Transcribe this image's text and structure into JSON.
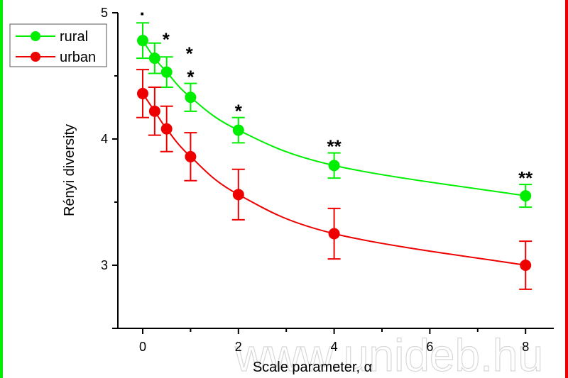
{
  "chart_data": {
    "type": "line",
    "title": "",
    "xlabel": "Scale parameter, α",
    "ylabel": "Rényi diversity",
    "xlim": [
      -0.5,
      8.6
    ],
    "ylim": [
      2.5,
      5
    ],
    "xticks": [
      0,
      2,
      4,
      6,
      8
    ],
    "xtick_labels": [
      "0",
      "2",
      "4",
      "6",
      "8"
    ],
    "yticks": [
      3,
      4,
      5
    ],
    "ytick_labels": [
      "3",
      "4",
      "5"
    ],
    "grid": false,
    "legend_position": "top-left",
    "x": [
      0,
      0.25,
      0.5,
      1,
      2,
      4,
      8
    ],
    "series": [
      {
        "name": "rural",
        "color": "#00ee00",
        "values": [
          4.78,
          4.64,
          4.53,
          4.33,
          4.07,
          3.79,
          3.55
        ],
        "errors": [
          0.14,
          0.12,
          0.12,
          0.11,
          0.1,
          0.1,
          0.09
        ]
      },
      {
        "name": "urban",
        "color": "#ee0000",
        "values": [
          4.36,
          4.22,
          4.08,
          3.86,
          3.56,
          3.25,
          3.0
        ],
        "errors": [
          0.19,
          0.19,
          0.18,
          0.19,
          0.2,
          0.2,
          0.19
        ]
      }
    ],
    "annotations": [
      {
        "x": 0,
        "text": "·"
      },
      {
        "x": 0.25,
        "text": "*"
      },
      {
        "x": 0.5,
        "text": "*"
      },
      {
        "x": 1,
        "text": "*"
      },
      {
        "x": 2,
        "text": "*"
      },
      {
        "x": 4,
        "text": "**"
      },
      {
        "x": 8,
        "text": "**"
      }
    ]
  },
  "watermark": "www.unideb.hu",
  "frame": {
    "left_color": "#00ee00",
    "right_color": "#ee0000"
  }
}
